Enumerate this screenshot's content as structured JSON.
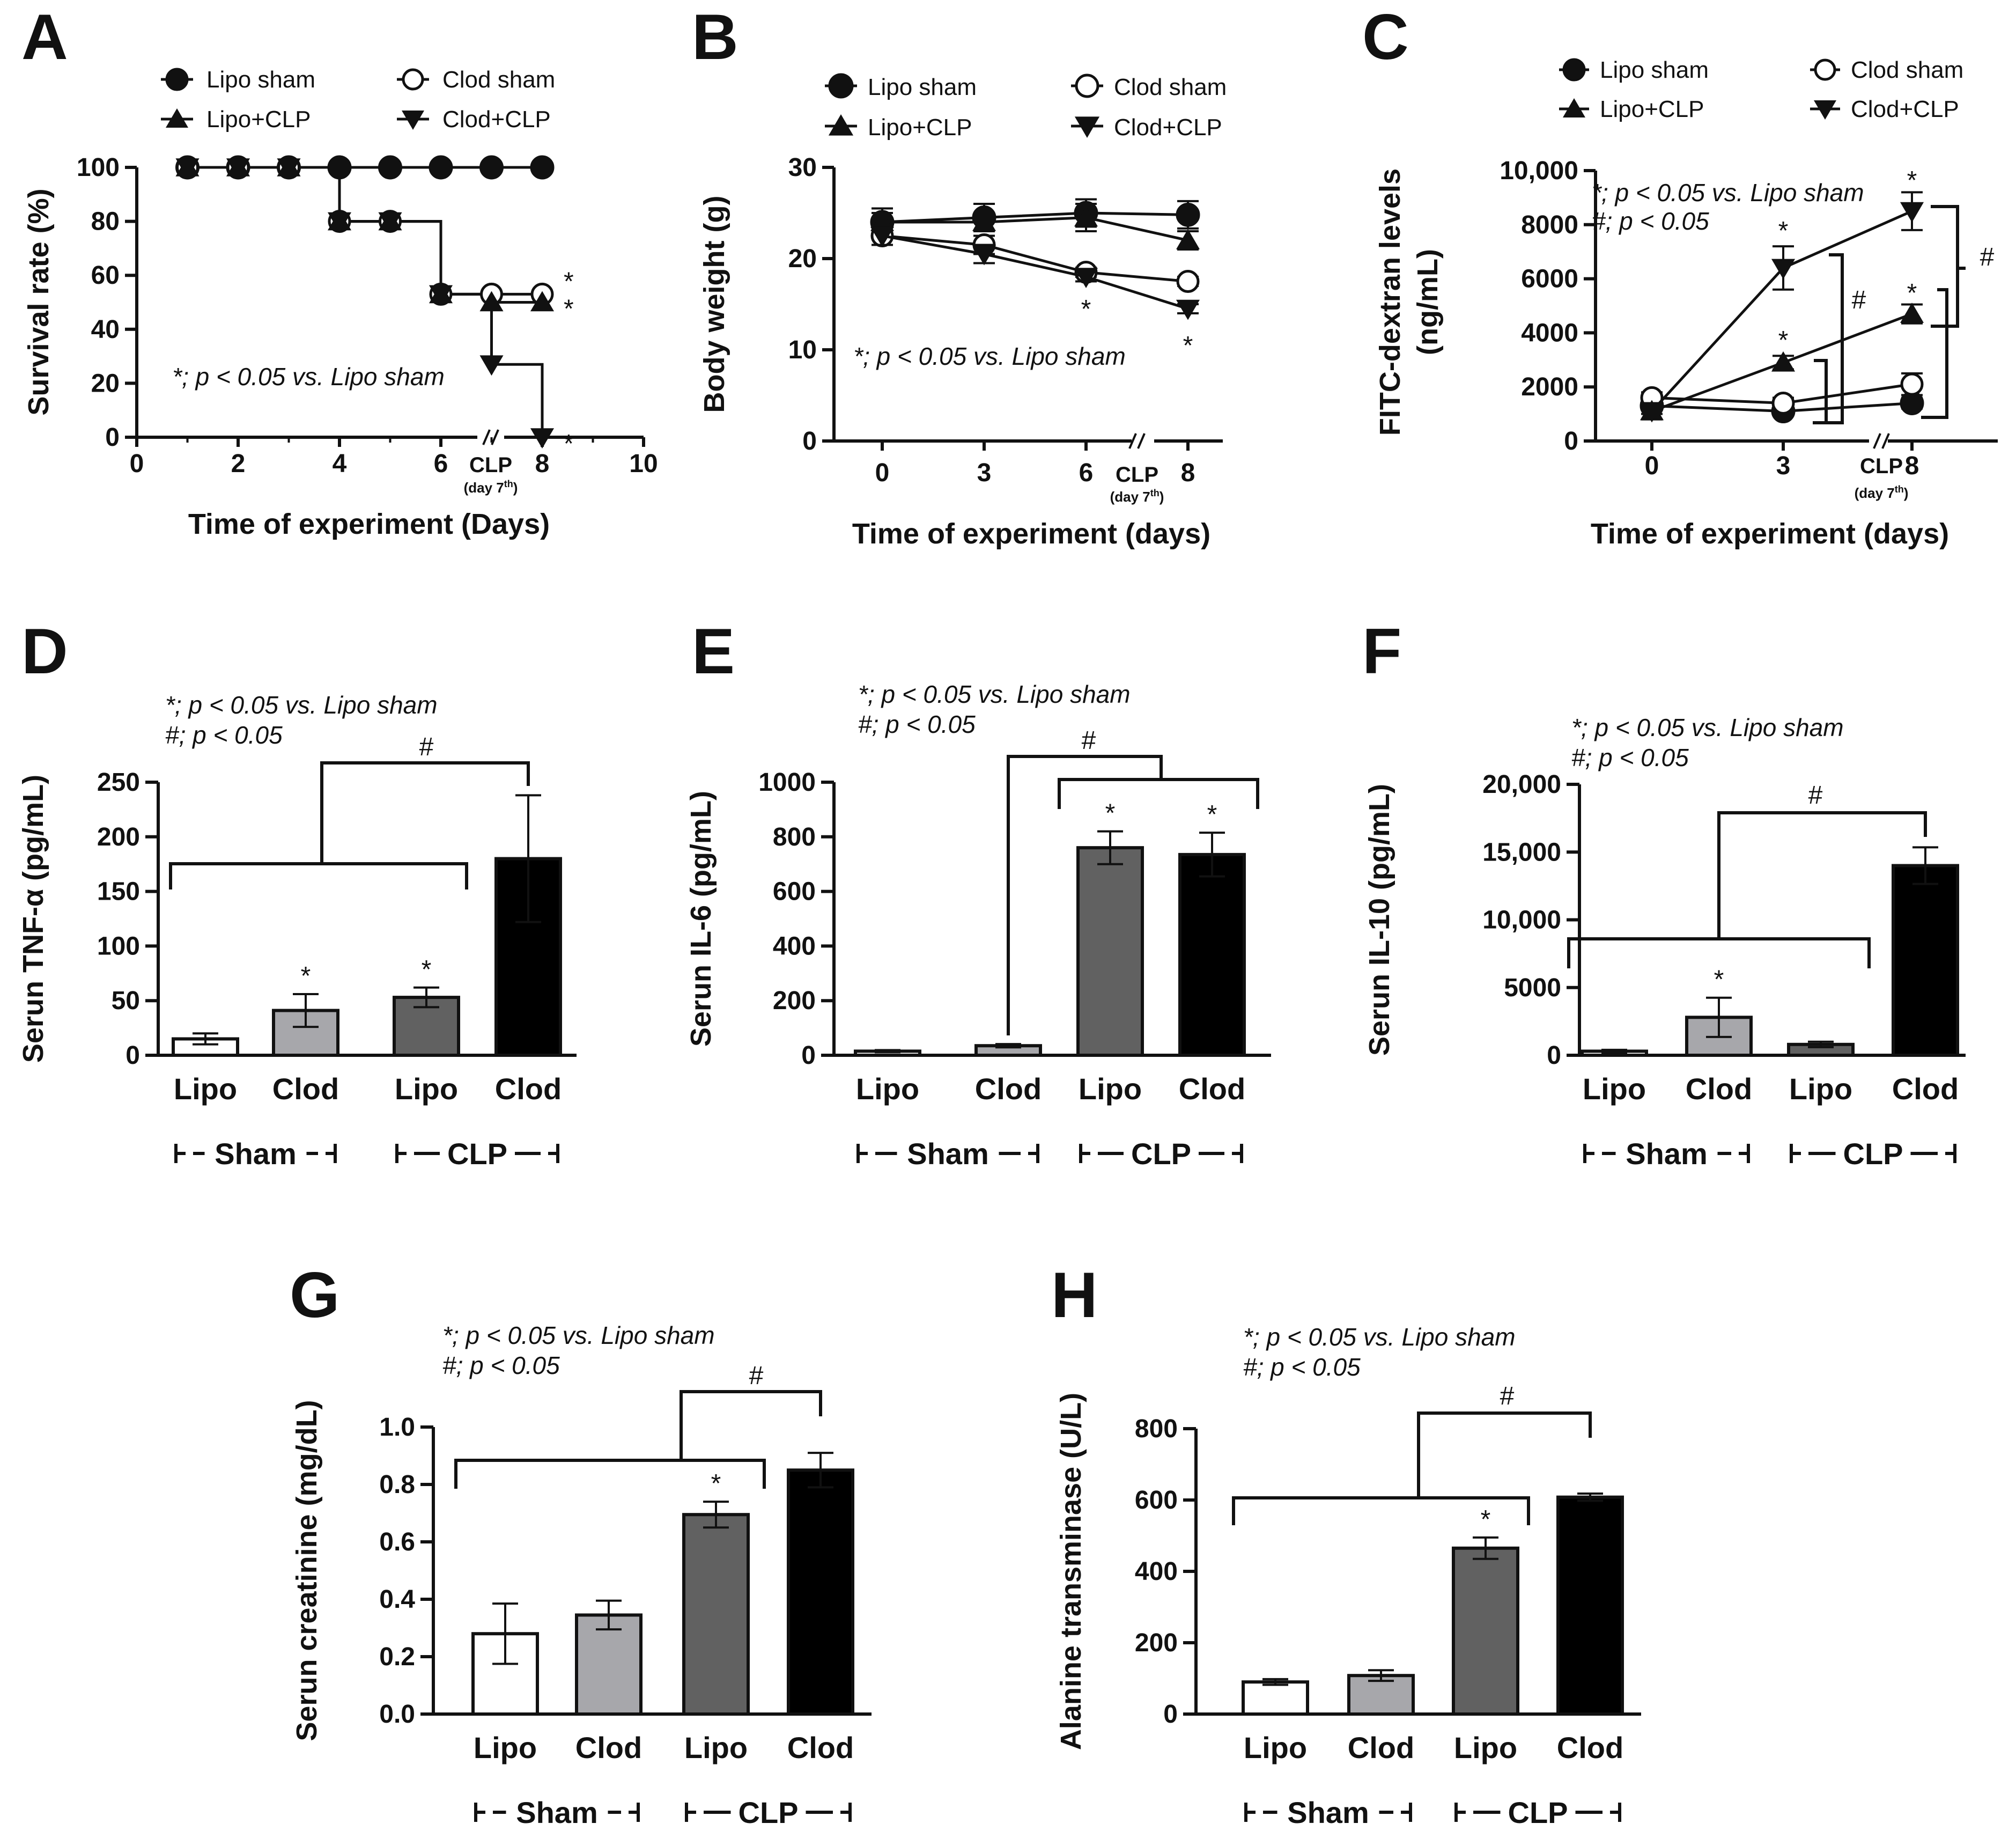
{
  "figure_notes": {
    "star": "*; p < 0.05 vs. Lipo sham",
    "hash": "#; p < 0.05"
  },
  "chart_data": [
    {
      "panel": "A",
      "type": "line",
      "subtype": "survival-step",
      "xlabel": "Time of experiment (Days)",
      "ylabel": "Survival rate (%)",
      "xlim": [
        0,
        10
      ],
      "ylim": [
        0,
        100
      ],
      "xticks": [
        "0",
        "2",
        "4",
        "6",
        "8",
        "10"
      ],
      "yticks": [
        "0",
        "20",
        "40",
        "60",
        "80",
        "100"
      ],
      "annotation": "*; p < 0.05 vs. Lipo sham",
      "clp_label": "CLP",
      "clp_sub": "(day 7",
      "clp_sup": "th",
      "clp_close": ")",
      "legend": [
        "Lipo sham",
        "Clod sham",
        "Lipo+CLP",
        "Clod+CLP"
      ],
      "series": [
        {
          "name": "Lipo sham",
          "marker": "circle-filled",
          "x": [
            1,
            2,
            3,
            4,
            5,
            6,
            7,
            8
          ],
          "y": [
            100,
            100,
            100,
            100,
            100,
            100,
            100,
            100
          ],
          "sig": ""
        },
        {
          "name": "Clod sham",
          "marker": "circle-open",
          "x": [
            1,
            2,
            3,
            4,
            5,
            6,
            7,
            8
          ],
          "y": [
            100,
            100,
            100,
            80,
            80,
            53,
            53,
            53
          ],
          "sig": "*"
        },
        {
          "name": "Lipo+CLP",
          "marker": "triangle-up",
          "x": [
            1,
            2,
            3,
            4,
            5,
            6,
            7,
            8
          ],
          "y": [
            100,
            100,
            100,
            80,
            80,
            53,
            50,
            50
          ],
          "sig": "*"
        },
        {
          "name": "Clod+CLP",
          "marker": "triangle-down",
          "x": [
            1,
            2,
            3,
            4,
            5,
            6,
            7,
            8
          ],
          "y": [
            100,
            100,
            100,
            80,
            80,
            53,
            27,
            0
          ],
          "sig": "*"
        }
      ]
    },
    {
      "panel": "B",
      "type": "line",
      "xlabel": "Time of experiment (days)",
      "ylabel": "Body weight (g)",
      "ylim": [
        0,
        30
      ],
      "yticks": [
        "0",
        "10",
        "20",
        "30"
      ],
      "xticks": [
        "0",
        "3",
        "6",
        "8"
      ],
      "annotation": "*; p < 0.05 vs. Lipo sham",
      "clp_label": "CLP",
      "clp_sub": "(day 7",
      "clp_sup": "th",
      "clp_close": ")",
      "legend": [
        "Lipo sham",
        "Clod sham",
        "Lipo+CLP",
        "Clod+CLP"
      ],
      "series": [
        {
          "name": "Lipo sham",
          "marker": "circle-filled",
          "y": [
            24.0,
            24.5,
            25.0,
            24.8
          ],
          "err": [
            1.5,
            1.5,
            1.5,
            1.5
          ]
        },
        {
          "name": "Clod sham",
          "marker": "circle-open",
          "y": [
            22.5,
            21.5,
            18.5,
            17.5
          ],
          "err": [
            1.0,
            1.0,
            0.5,
            0.5
          ]
        },
        {
          "name": "Lipo+CLP",
          "marker": "triangle-up",
          "y": [
            24.0,
            24.0,
            24.5,
            22.0
          ],
          "err": [
            1.0,
            1.0,
            1.5,
            1.0
          ]
        },
        {
          "name": "Clod+CLP",
          "marker": "triangle-down",
          "y": [
            22.5,
            20.5,
            18.0,
            14.5
          ],
          "err": [
            1.0,
            1.0,
            0.5,
            0.5
          ]
        }
      ],
      "sig_marks": [
        {
          "x": "6",
          "text": "*"
        },
        {
          "x": "8",
          "text": "*"
        }
      ]
    },
    {
      "panel": "C",
      "type": "line",
      "xlabel": "Time of experiment (days)",
      "ylabel_line1": "FITC-dextran levels",
      "ylabel_line2": "(ng/mL)",
      "ylim": [
        0,
        10000
      ],
      "yticks": [
        "0",
        "2000",
        "4000",
        "6000",
        "8000",
        "10,000"
      ],
      "xticks": [
        "0",
        "3",
        "8"
      ],
      "annotation_star": "*; p < 0.05 vs. Lipo sham",
      "annotation_hash": "#; p < 0.05",
      "clp_label": "CLP",
      "clp_sub": "(day 7",
      "clp_sup": "th",
      "clp_close": ")",
      "legend": [
        "Lipo sham",
        "Clod sham",
        "Lipo+CLP",
        "Clod+CLP"
      ],
      "series": [
        {
          "name": "Lipo sham",
          "marker": "circle-filled",
          "y": [
            1300,
            1100,
            1400
          ],
          "err": [
            300,
            150,
            200
          ]
        },
        {
          "name": "Clod sham",
          "marker": "circle-open",
          "y": [
            1600,
            1400,
            2100
          ],
          "err": [
            200,
            200,
            400
          ]
        },
        {
          "name": "Lipo+CLP",
          "marker": "triangle-up",
          "y": [
            1100,
            2900,
            4700
          ],
          "err": [
            300,
            250,
            350
          ]
        },
        {
          "name": "Clod+CLP",
          "marker": "triangle-down",
          "y": [
            1100,
            6400,
            8500
          ],
          "err": [
            300,
            800,
            700
          ]
        }
      ],
      "hash_label": "#",
      "star": "*"
    },
    {
      "panel": "D",
      "type": "bar",
      "ylabel": "Serun TNF-α (pg/mL)",
      "ylim": [
        0,
        250
      ],
      "yticks": [
        "0",
        "50",
        "100",
        "150",
        "200",
        "250"
      ],
      "categories": [
        "Lipo",
        "Clod",
        "Lipo",
        "Clod"
      ],
      "values": [
        15,
        41,
        53,
        180
      ],
      "err": [
        5,
        15,
        9,
        58
      ],
      "colors": [
        "#ffffff",
        "#a7a7ab",
        "#616161",
        "#000000"
      ],
      "sig": [
        "",
        "*",
        "*",
        ""
      ],
      "groups": [
        "Sham",
        "CLP"
      ],
      "annotation_star": "*; p < 0.05 vs. Lipo sham",
      "annotation_hash": "#; p < 0.05",
      "hash_label": "#"
    },
    {
      "panel": "E",
      "type": "bar",
      "ylabel": "Serun IL-6  (pg/mL)",
      "ylim": [
        0,
        1000
      ],
      "yticks": [
        "0",
        "200",
        "400",
        "600",
        "800",
        "1000"
      ],
      "categories": [
        "Lipo",
        "Clod",
        "Lipo",
        "Clod"
      ],
      "values": [
        15,
        35,
        760,
        735
      ],
      "err": [
        4,
        6,
        60,
        80
      ],
      "colors": [
        "#ffffff",
        "#a7a7ab",
        "#616161",
        "#000000"
      ],
      "sig": [
        "",
        "",
        "*",
        "*"
      ],
      "groups": [
        "Sham",
        "CLP"
      ],
      "annotation_star": "*; p < 0.05 vs. Lipo sham",
      "annotation_hash": "#; p < 0.05",
      "hash_label": "#"
    },
    {
      "panel": "F",
      "type": "bar",
      "ylabel": "Serun IL-10  (pg/mL)",
      "ylim": [
        0,
        20000
      ],
      "yticks": [
        "0",
        "5000",
        "10,000",
        "15,000",
        "20,000"
      ],
      "categories": [
        "Lipo",
        "Clod",
        "Lipo",
        "Clod"
      ],
      "values": [
        300,
        2800,
        800,
        14000
      ],
      "err": [
        100,
        1450,
        200,
        1350
      ],
      "colors": [
        "#ffffff",
        "#a7a7ab",
        "#616161",
        "#000000"
      ],
      "sig": [
        "",
        "*",
        "",
        ""
      ],
      "groups": [
        "Sham",
        "CLP"
      ],
      "annotation_star": "*; p < 0.05 vs. Lipo sham",
      "annotation_hash": "#; p < 0.05",
      "hash_label": "#"
    },
    {
      "panel": "G",
      "type": "bar",
      "ylabel": "Serun creatinine (mg/dL)",
      "ylim": [
        0,
        1.0
      ],
      "yticks": [
        "0.0",
        "0.2",
        "0.4",
        "0.6",
        "0.8",
        "1.0"
      ],
      "categories": [
        "Lipo",
        "Clod",
        "Lipo",
        "Clod"
      ],
      "values": [
        0.28,
        0.345,
        0.695,
        0.85
      ],
      "err": [
        0.105,
        0.05,
        0.045,
        0.06
      ],
      "colors": [
        "#ffffff",
        "#a7a7ab",
        "#616161",
        "#000000"
      ],
      "sig": [
        "",
        "",
        "*",
        ""
      ],
      "groups": [
        "Sham",
        "CLP"
      ],
      "annotation_star": "*; p < 0.05 vs. Lipo sham",
      "annotation_hash": "#; p < 0.05",
      "hash_label": "#"
    },
    {
      "panel": "H",
      "type": "bar",
      "ylabel": "Alanine transminase (U/L)",
      "ylim": [
        0,
        800
      ],
      "yticks": [
        "0",
        "200",
        "400",
        "600",
        "800"
      ],
      "categories": [
        "Lipo",
        "Clod",
        "Lipo",
        "Clod"
      ],
      "values": [
        90,
        108,
        465,
        608
      ],
      "err": [
        8,
        15,
        30,
        10
      ],
      "colors": [
        "#ffffff",
        "#a7a7ab",
        "#616161",
        "#000000"
      ],
      "sig": [
        "",
        "",
        "*",
        ""
      ],
      "groups": [
        "Sham",
        "CLP"
      ],
      "annotation_star": "*; p < 0.05 vs. Lipo sham",
      "annotation_hash": "#; p < 0.05",
      "hash_label": "#"
    }
  ]
}
